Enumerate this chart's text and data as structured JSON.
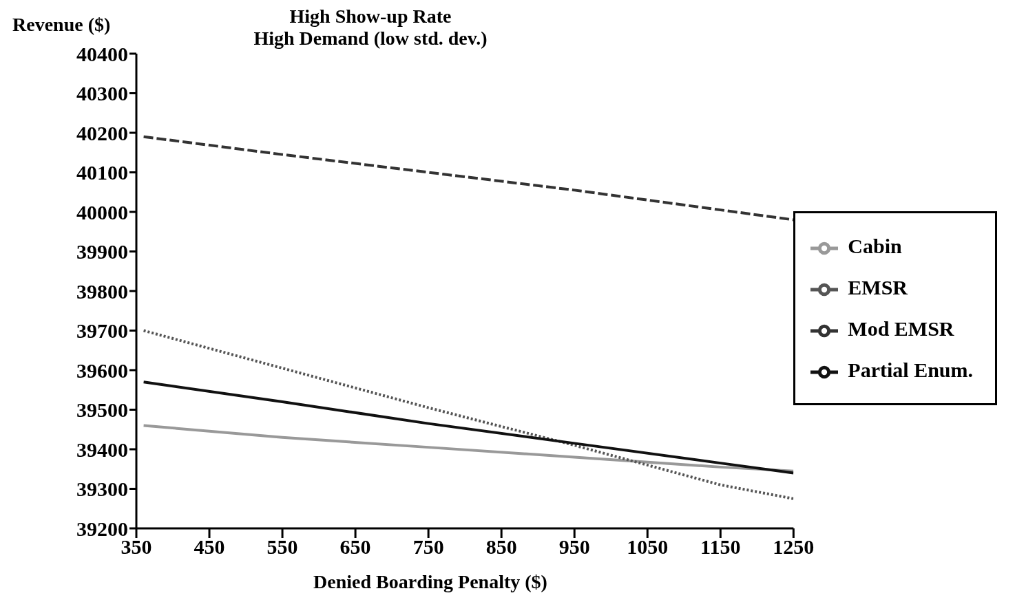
{
  "chart_data": {
    "type": "line",
    "title": "High Show-up Rate",
    "subtitle": "High Demand (low std. dev.)",
    "xlabel": "Denied Boarding Penalty ($)",
    "ylabel": "Revenue ($)",
    "x": [
      360,
      550,
      750,
      950,
      1150,
      1250
    ],
    "series": [
      {
        "name": "Cabin",
        "color": "#999999",
        "line_style": "solid",
        "values": [
          39460,
          39430,
          39405,
          39380,
          39355,
          39345
        ]
      },
      {
        "name": "EMSR",
        "color": "#555555",
        "line_style": "dotted",
        "values": [
          39700,
          39605,
          39505,
          39410,
          39310,
          39275
        ]
      },
      {
        "name": "Mod EMSR",
        "color": "#333333",
        "line_style": "dashed",
        "values": [
          40190,
          40145,
          40100,
          40055,
          40005,
          39980
        ]
      },
      {
        "name": "Partial Enum.",
        "color": "#111111",
        "line_style": "solid",
        "values": [
          39570,
          39520,
          39465,
          39415,
          39365,
          39340
        ]
      }
    ],
    "xlim": [
      350,
      1250
    ],
    "xticks": [
      350,
      450,
      550,
      650,
      750,
      850,
      950,
      1050,
      1150,
      1250
    ],
    "ylim": [
      39200,
      40400
    ],
    "yticks": [
      39200,
      39300,
      39400,
      39500,
      39600,
      39700,
      39800,
      39900,
      40000,
      40100,
      40200,
      40300,
      40400
    ],
    "grid": false,
    "legend": "right",
    "marker": "none"
  }
}
